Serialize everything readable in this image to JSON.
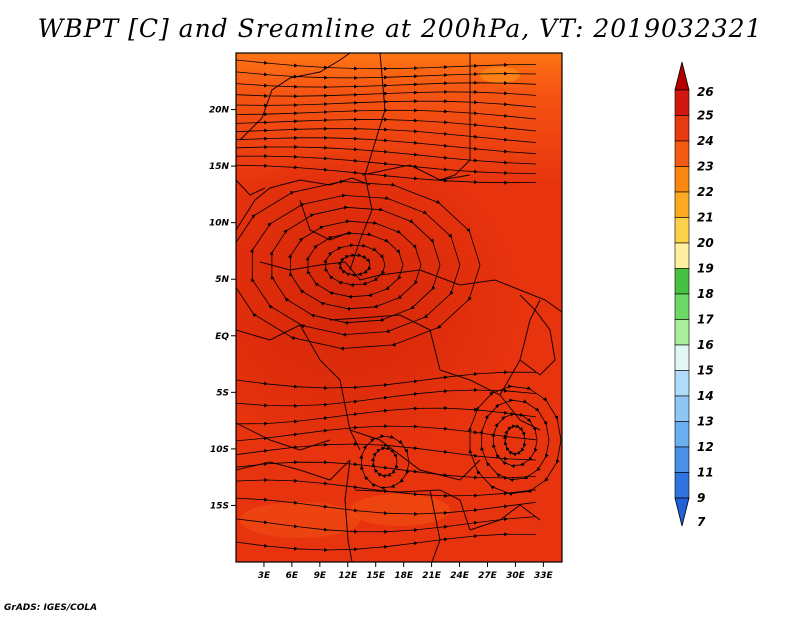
{
  "title": "WBPT [C] and Sreamline at 200hPa, VT: 2019032321",
  "credit": "GrADS: IGES/COLA",
  "map": {
    "lon_range": [
      0,
      35
    ],
    "lat_range": [
      -20,
      25
    ],
    "lat_ticks": [
      {
        "value": 20,
        "label": "20N"
      },
      {
        "value": 15,
        "label": "15N"
      },
      {
        "value": 10,
        "label": "10N"
      },
      {
        "value": 5,
        "label": "5N"
      },
      {
        "value": 0,
        "label": "EQ"
      },
      {
        "value": -5,
        "label": "5S"
      },
      {
        "value": -10,
        "label": "10S"
      },
      {
        "value": -15,
        "label": "15S"
      }
    ],
    "lon_ticks": [
      {
        "value": 3,
        "label": "3E"
      },
      {
        "value": 6,
        "label": "6E"
      },
      {
        "value": 9,
        "label": "9E"
      },
      {
        "value": 12,
        "label": "12E"
      },
      {
        "value": 15,
        "label": "15E"
      },
      {
        "value": 18,
        "label": "18E"
      },
      {
        "value": 21,
        "label": "21E"
      },
      {
        "value": 24,
        "label": "24E"
      },
      {
        "value": 27,
        "label": "27E"
      },
      {
        "value": 30,
        "label": "30E"
      },
      {
        "value": 33,
        "label": "33E"
      }
    ],
    "field_colors": {
      "base": "#e8340e",
      "north": "#ff6a12",
      "warm_core": "#d8280a"
    }
  },
  "colorbar": {
    "levels": [
      "26",
      "25",
      "24",
      "23",
      "22",
      "21",
      "20",
      "19",
      "18",
      "17",
      "16",
      "15",
      "14",
      "13",
      "12",
      "11",
      "9",
      "7"
    ],
    "colors": [
      "#b40000",
      "#d01810",
      "#e83a10",
      "#f45a12",
      "#fa8810",
      "#fcaa22",
      "#fdd04a",
      "#fff0a0",
      "#46c040",
      "#6cd866",
      "#a8ee9c",
      "#e2f8f6",
      "#b0dcfa",
      "#8ec6f6",
      "#6aaef0",
      "#4a90e8",
      "#2f74e0",
      "#2060d8"
    ]
  }
}
